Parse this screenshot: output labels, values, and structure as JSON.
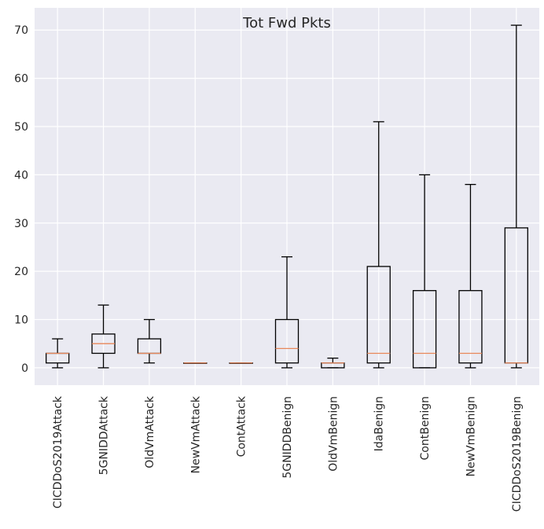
{
  "chart_data": {
    "type": "box",
    "title": "Tot Fwd Pkts",
    "xlabel": "",
    "ylabel": "",
    "ylim": [
      -3.6,
      74.6
    ],
    "yticks": [
      0,
      10,
      20,
      30,
      40,
      50,
      60,
      70
    ],
    "grid": true,
    "categories": [
      "CICDDoS2019Attack",
      "5GNIDDAttack",
      "OldVmAttack",
      "NewVmAttack",
      "ContAttack",
      "5GNIDDBenign",
      "OldVmBenign",
      "IdaBenign",
      "ContBenign",
      "NewVmBenign",
      "CICDDoS2019Benign"
    ],
    "boxes": [
      {
        "whisker_low": 0,
        "q1": 1,
        "median": 3,
        "q3": 3,
        "whisker_high": 6
      },
      {
        "whisker_low": 0,
        "q1": 3,
        "median": 5,
        "q3": 7,
        "whisker_high": 13
      },
      {
        "whisker_low": 1,
        "q1": 3,
        "median": 3,
        "q3": 6,
        "whisker_high": 10
      },
      {
        "whisker_low": 1,
        "q1": 1,
        "median": 1,
        "q3": 1,
        "whisker_high": 1
      },
      {
        "whisker_low": 1,
        "q1": 1,
        "median": 1,
        "q3": 1,
        "whisker_high": 1
      },
      {
        "whisker_low": 0,
        "q1": 1,
        "median": 4,
        "q3": 10,
        "whisker_high": 23
      },
      {
        "whisker_low": 0,
        "q1": 0,
        "median": 1,
        "q3": 1,
        "whisker_high": 2
      },
      {
        "whisker_low": 0,
        "q1": 1,
        "median": 3,
        "q3": 21,
        "whisker_high": 51
      },
      {
        "whisker_low": 0,
        "q1": 0,
        "median": 3,
        "q3": 16,
        "whisker_high": 40
      },
      {
        "whisker_low": 0,
        "q1": 1,
        "median": 3,
        "q3": 16,
        "whisker_high": 38
      },
      {
        "whisker_low": 0,
        "q1": 1,
        "median": 1,
        "q3": 29,
        "whisker_high": 71
      }
    ]
  },
  "colors": {
    "plot_background": "#eaeaf2",
    "grid": "#ffffff",
    "box": "#000000",
    "median": "#e8875a",
    "text": "#262626"
  }
}
